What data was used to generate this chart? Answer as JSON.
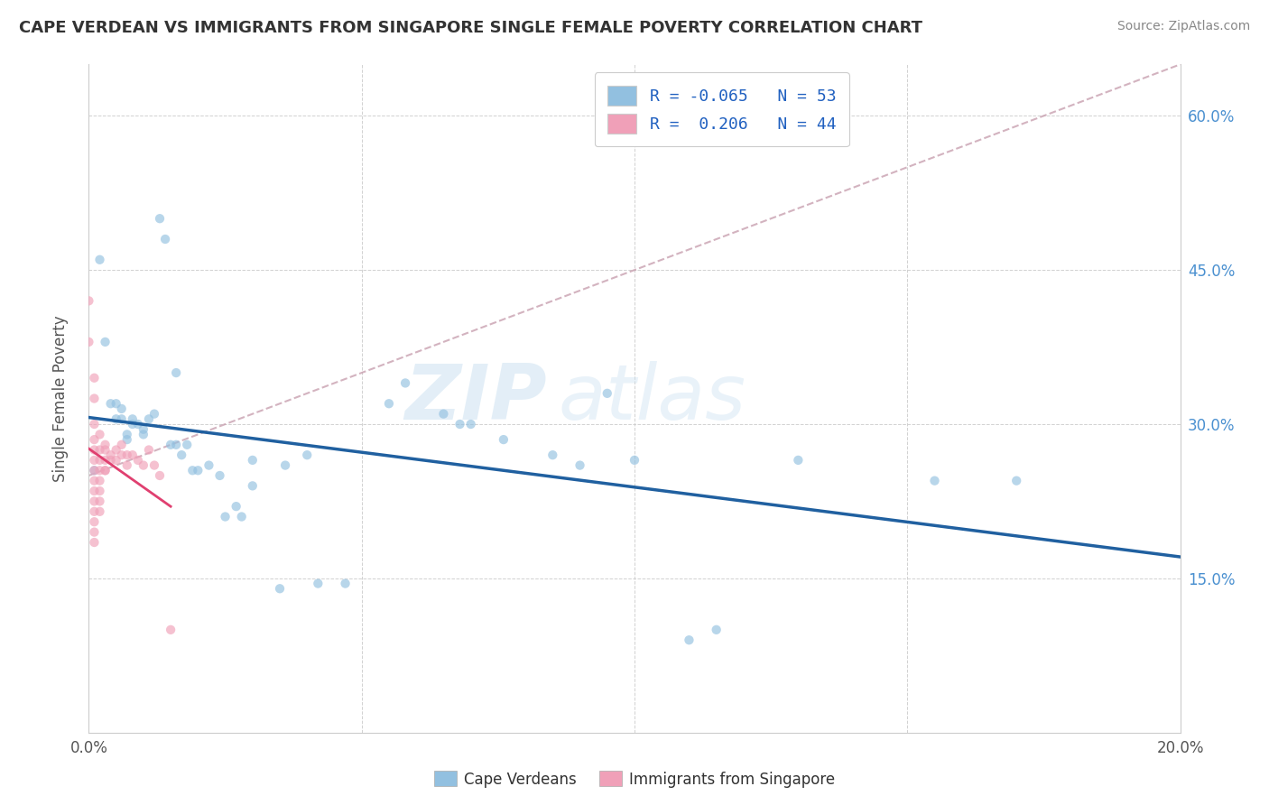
{
  "title": "CAPE VERDEAN VS IMMIGRANTS FROM SINGAPORE SINGLE FEMALE POVERTY CORRELATION CHART",
  "source": "Source: ZipAtlas.com",
  "ylabel": "Single Female Poverty",
  "xlim": [
    0.0,
    0.2
  ],
  "ylim": [
    0.0,
    0.65
  ],
  "x_tick_positions": [
    0.0,
    0.05,
    0.1,
    0.15,
    0.2
  ],
  "x_tick_labels": [
    "0.0%",
    "",
    "",
    "",
    "20.0%"
  ],
  "y_ticks_right": [
    0.15,
    0.3,
    0.45,
    0.6
  ],
  "y_tick_labels_right": [
    "15.0%",
    "30.0%",
    "45.0%",
    "60.0%"
  ],
  "R_blue": -0.065,
  "N_blue": 53,
  "R_pink": 0.206,
  "N_pink": 44,
  "blue_scatter": [
    [
      0.001,
      0.255
    ],
    [
      0.002,
      0.46
    ],
    [
      0.003,
      0.38
    ],
    [
      0.004,
      0.32
    ],
    [
      0.005,
      0.32
    ],
    [
      0.005,
      0.305
    ],
    [
      0.006,
      0.305
    ],
    [
      0.006,
      0.315
    ],
    [
      0.007,
      0.285
    ],
    [
      0.007,
      0.29
    ],
    [
      0.008,
      0.3
    ],
    [
      0.008,
      0.305
    ],
    [
      0.009,
      0.3
    ],
    [
      0.01,
      0.295
    ],
    [
      0.01,
      0.29
    ],
    [
      0.011,
      0.305
    ],
    [
      0.012,
      0.31
    ],
    [
      0.013,
      0.5
    ],
    [
      0.014,
      0.48
    ],
    [
      0.015,
      0.28
    ],
    [
      0.016,
      0.35
    ],
    [
      0.016,
      0.28
    ],
    [
      0.017,
      0.27
    ],
    [
      0.018,
      0.28
    ],
    [
      0.019,
      0.255
    ],
    [
      0.02,
      0.255
    ],
    [
      0.022,
      0.26
    ],
    [
      0.024,
      0.25
    ],
    [
      0.025,
      0.21
    ],
    [
      0.027,
      0.22
    ],
    [
      0.028,
      0.21
    ],
    [
      0.03,
      0.24
    ],
    [
      0.03,
      0.265
    ],
    [
      0.035,
      0.14
    ],
    [
      0.036,
      0.26
    ],
    [
      0.04,
      0.27
    ],
    [
      0.042,
      0.145
    ],
    [
      0.047,
      0.145
    ],
    [
      0.055,
      0.32
    ],
    [
      0.058,
      0.34
    ],
    [
      0.065,
      0.31
    ],
    [
      0.068,
      0.3
    ],
    [
      0.07,
      0.3
    ],
    [
      0.076,
      0.285
    ],
    [
      0.085,
      0.27
    ],
    [
      0.09,
      0.26
    ],
    [
      0.095,
      0.33
    ],
    [
      0.1,
      0.265
    ],
    [
      0.11,
      0.09
    ],
    [
      0.115,
      0.1
    ],
    [
      0.13,
      0.265
    ],
    [
      0.155,
      0.245
    ],
    [
      0.17,
      0.245
    ]
  ],
  "pink_scatter": [
    [
      0.0,
      0.42
    ],
    [
      0.0,
      0.38
    ],
    [
      0.001,
      0.345
    ],
    [
      0.001,
      0.325
    ],
    [
      0.001,
      0.3
    ],
    [
      0.001,
      0.285
    ],
    [
      0.001,
      0.275
    ],
    [
      0.001,
      0.265
    ],
    [
      0.001,
      0.255
    ],
    [
      0.001,
      0.245
    ],
    [
      0.001,
      0.235
    ],
    [
      0.001,
      0.225
    ],
    [
      0.001,
      0.215
    ],
    [
      0.001,
      0.205
    ],
    [
      0.001,
      0.195
    ],
    [
      0.001,
      0.185
    ],
    [
      0.002,
      0.29
    ],
    [
      0.002,
      0.275
    ],
    [
      0.002,
      0.265
    ],
    [
      0.002,
      0.255
    ],
    [
      0.002,
      0.245
    ],
    [
      0.002,
      0.235
    ],
    [
      0.002,
      0.225
    ],
    [
      0.002,
      0.215
    ],
    [
      0.003,
      0.28
    ],
    [
      0.003,
      0.275
    ],
    [
      0.003,
      0.265
    ],
    [
      0.003,
      0.255
    ],
    [
      0.003,
      0.255
    ],
    [
      0.004,
      0.27
    ],
    [
      0.004,
      0.265
    ],
    [
      0.005,
      0.275
    ],
    [
      0.005,
      0.265
    ],
    [
      0.006,
      0.28
    ],
    [
      0.006,
      0.27
    ],
    [
      0.007,
      0.27
    ],
    [
      0.007,
      0.26
    ],
    [
      0.008,
      0.27
    ],
    [
      0.009,
      0.265
    ],
    [
      0.01,
      0.26
    ],
    [
      0.011,
      0.275
    ],
    [
      0.012,
      0.26
    ],
    [
      0.013,
      0.25
    ],
    [
      0.015,
      0.1
    ]
  ],
  "ref_line": [
    [
      0.0,
      0.25
    ],
    [
      0.2,
      0.65
    ]
  ],
  "watermark": "ZIPatlas",
  "scatter_size": 55,
  "scatter_alpha": 0.65,
  "blue_color": "#92c0e0",
  "pink_color": "#f0a0b8",
  "blue_line_color": "#2060a0",
  "pink_line_color": "#e04070",
  "ref_line_color": "#c8a0b0",
  "grid_color": "#cccccc",
  "background_color": "#ffffff",
  "title_color": "#333333",
  "axis_color": "#555555",
  "right_axis_color": "#4a90d0",
  "legend_label_color": "#2060c0"
}
